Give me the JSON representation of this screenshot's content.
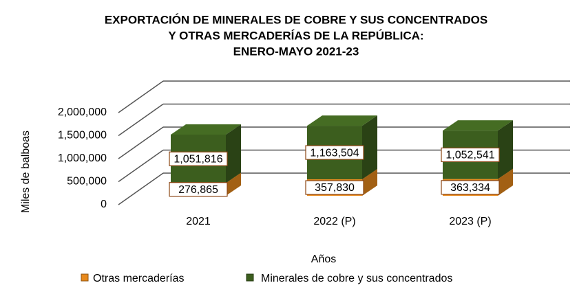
{
  "chart_data": {
    "type": "bar3d_stacked",
    "title": [
      "EXPORTACIÓN DE MINERALES DE COBRE Y SUS CONCENTRADOS",
      "Y OTRAS MERCADERÍAS  DE LA REPÚBLICA:",
      "ENERO-MAYO  2021-23"
    ],
    "x_label": "Años",
    "y_label": "Miles de balboas",
    "categories": [
      "2021",
      "2022 (P)",
      "2023 (P)"
    ],
    "series": [
      {
        "name": "Otras mercaderías",
        "color": "#e8891c",
        "values": [
          276865,
          357830,
          363334
        ],
        "value_labels": [
          "276,865",
          "357,830",
          "363,334"
        ]
      },
      {
        "name": "Minerales de cobre y sus concentrados",
        "color": "#3c5e1e",
        "values": [
          1051816,
          1163504,
          1052541
        ],
        "value_labels": [
          "1,051,816",
          "1,163,504",
          "1,052,541"
        ]
      }
    ],
    "ylim": [
      0,
      2000000
    ],
    "yticks": [
      0,
      {
        "value": 500000,
        "label": "500,000"
      },
      {
        "value": 1000000,
        "label": "1,000,000"
      },
      {
        "value": 1500000,
        "label": "1,500,000"
      },
      {
        "value": 2000000,
        "label": "2,000,000"
      }
    ],
    "grid": true
  }
}
